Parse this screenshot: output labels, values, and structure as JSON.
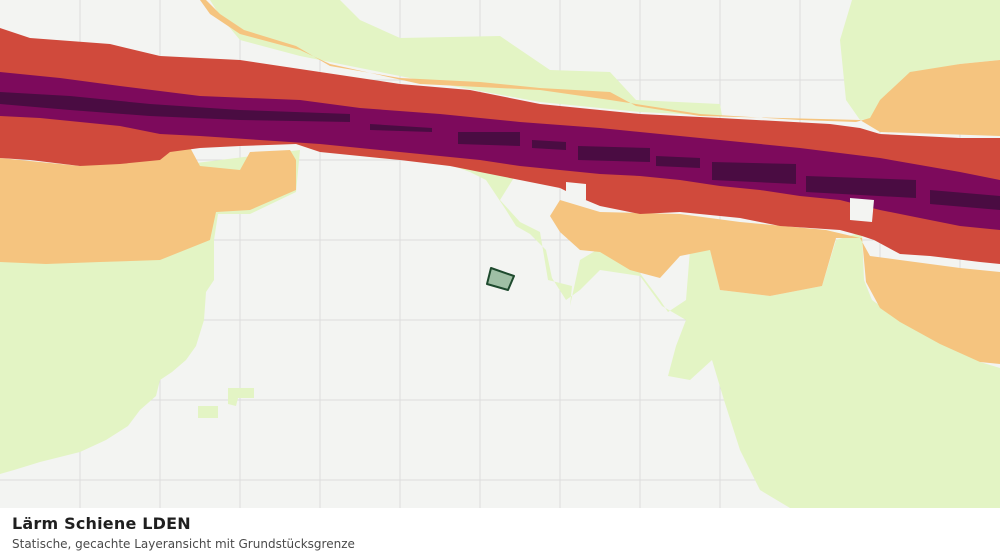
{
  "layer": {
    "title": "Lärm Schiene LDEN",
    "subtitle": "Statische, gecachte Layeransicht mit Grundstücksgrenze"
  },
  "legend_colors": {
    "background": "#f3f4f2",
    "grid": "#dcdcdc",
    "band_lowest": "#e3f4c4",
    "band_low": "#f5c47f",
    "band_mid": "#d04a3c",
    "band_high": "#7d0a5c",
    "band_highest": "#4a0c42",
    "parcel_fill": "#9fbfa5",
    "parcel_stroke": "#1e4a2e"
  }
}
